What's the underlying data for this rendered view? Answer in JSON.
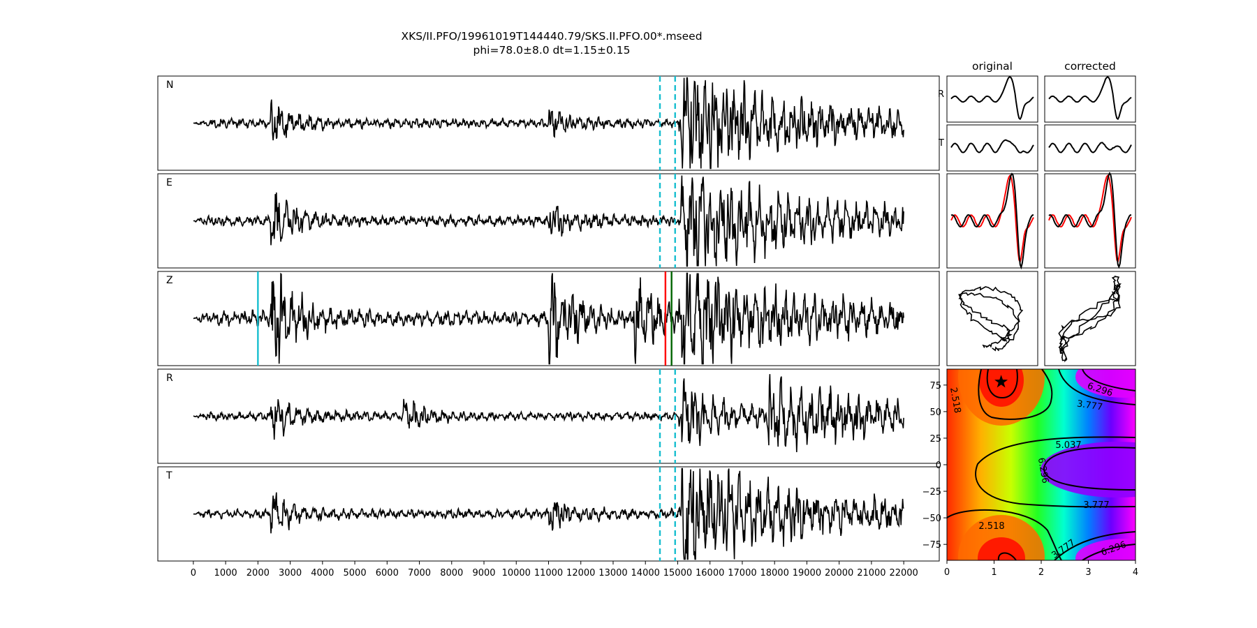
{
  "title": {
    "line1": "XKS/II.PFO/19961019T144440.79/SKS.II.PFO.00*.mseed",
    "line2": "phi=78.0±8.0 dt=1.15±0.15"
  },
  "headers": {
    "original": "original",
    "corrected": "corrected"
  },
  "chart_data": [
    {
      "type": "line",
      "panel": "traces",
      "x_ticks": [
        0,
        1000,
        2000,
        3000,
        4000,
        5000,
        6000,
        7000,
        8000,
        9000,
        10000,
        11000,
        12000,
        13000,
        14000,
        15000,
        16000,
        17000,
        18000,
        19000,
        20000,
        21000,
        22000
      ],
      "x_tick_labels": [
        "0",
        "1000",
        "2000",
        "3000",
        "4000",
        "5000",
        "6000",
        "7000",
        "8000",
        "9000",
        "10000",
        "11000",
        "12000",
        "13000",
        "14000",
        "15000",
        "16000",
        "17000",
        "18000",
        "19000",
        "20000",
        "21000",
        "22000"
      ],
      "xlim": [
        -1100,
        23100
      ],
      "signal_range": [
        0,
        22000
      ],
      "window_markers": {
        "start": 14450,
        "end": 14920,
        "color": "#17becf"
      },
      "z_markers": [
        {
          "x": 2000,
          "color": "#17becf"
        },
        {
          "x": 14620,
          "color": "#ff0000"
        },
        {
          "x": 14810,
          "color": "#006400"
        }
      ],
      "series": [
        {
          "label": "N",
          "noise": 0.12,
          "event_at": [
            2400,
            10950,
            15100
          ],
          "event_gain": [
            0.7,
            0.35,
            1.6
          ]
        },
        {
          "label": "E",
          "noise": 0.14,
          "event_at": [
            2400,
            11000,
            15100
          ],
          "event_gain": [
            0.8,
            0.5,
            1.5
          ]
        },
        {
          "label": "Z",
          "noise": 0.2,
          "event_at": [
            2400,
            11000,
            13600,
            15100
          ],
          "event_gain": [
            1.6,
            1.5,
            1.2,
            1.3
          ]
        },
        {
          "label": "R",
          "noise": 0.11,
          "event_at": [
            2400,
            6500,
            15100,
            17800
          ],
          "event_gain": [
            0.7,
            0.4,
            1.1,
            0.9
          ]
        },
        {
          "label": "T",
          "noise": 0.12,
          "event_at": [
            2400,
            11000,
            15100
          ],
          "event_gain": [
            0.6,
            0.5,
            1.6
          ]
        }
      ]
    },
    {
      "type": "line",
      "panel": "particle-comparison",
      "rows": [
        {
          "label": "R",
          "columns": [
            "original",
            "corrected"
          ]
        },
        {
          "label": "T",
          "columns": [
            "original",
            "corrected"
          ]
        },
        {
          "label": "",
          "overlay_colors": [
            "#000000",
            "#ff0000"
          ],
          "columns": [
            "original",
            "corrected"
          ]
        },
        {
          "label": "",
          "type": "particle-motion",
          "columns": [
            "original",
            "corrected"
          ]
        }
      ]
    },
    {
      "type": "heatmap",
      "panel": "error-surface",
      "xlim": [
        0,
        4
      ],
      "ylim": [
        -90,
        90
      ],
      "x_ticks": [
        0,
        1,
        2,
        3,
        4
      ],
      "x_tick_labels": [
        "0",
        "1",
        "2",
        "3",
        "4"
      ],
      "y_ticks": [
        75,
        50,
        25,
        0,
        -25,
        -50,
        -75
      ],
      "y_tick_labels": [
        "75",
        "50",
        "25",
        "0",
        "−25",
        "−50",
        "−75"
      ],
      "colormap": "gist_rainbow",
      "best": {
        "dt": 1.15,
        "phi": 78.0
      },
      "contour_levels": [
        2.518,
        3.777,
        5.037,
        6.296
      ],
      "contour_labels": [
        "2.518",
        "3.777",
        "5.037",
        "6.296"
      ]
    }
  ]
}
